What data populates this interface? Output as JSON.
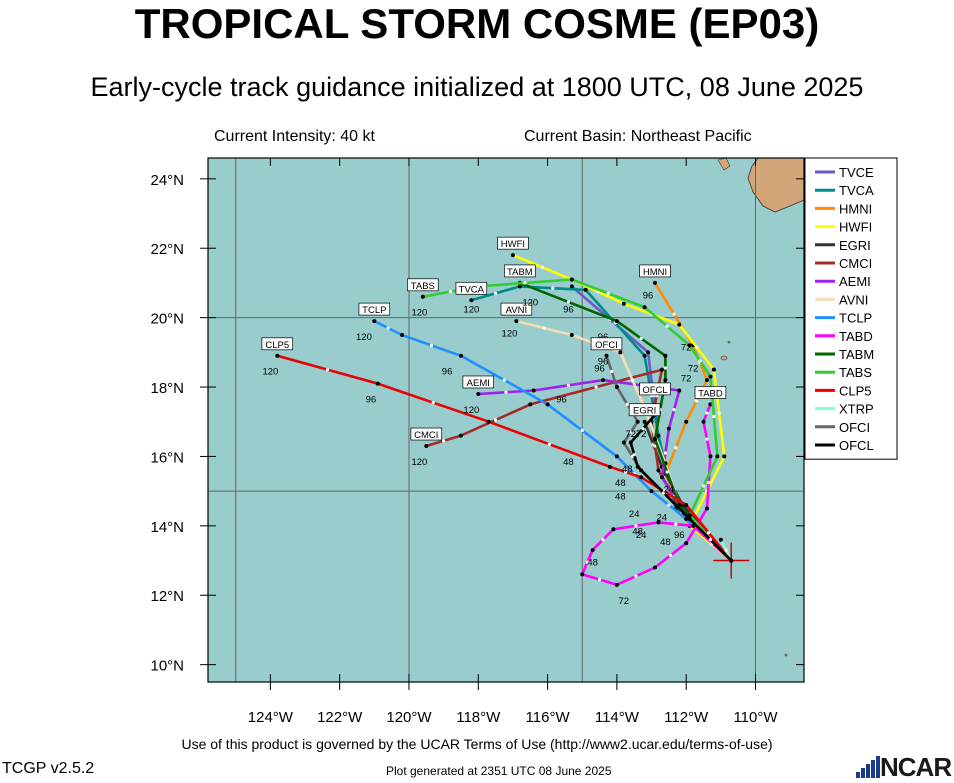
{
  "header": {
    "title": "TROPICAL STORM COSME (EP03)",
    "subtitle": "Early-cycle track guidance initialized at 1800 UTC, 08 June 2025",
    "intensity": "Current Intensity: 40 kt",
    "basin": "Current Basin: Northeast Pacific"
  },
  "map": {
    "lon_range": [
      -125.8,
      -108.6
    ],
    "lat_range": [
      9.5,
      24.6
    ],
    "lat_ticks": [
      {
        "lat": 24,
        "label": "24°N"
      },
      {
        "lat": 22,
        "label": "22°N"
      },
      {
        "lat": 20,
        "label": "20°N"
      },
      {
        "lat": 18,
        "label": "18°N"
      },
      {
        "lat": 16,
        "label": "16°N"
      },
      {
        "lat": 14,
        "label": "14°N"
      },
      {
        "lat": 12,
        "label": "12°N"
      },
      {
        "lat": 10,
        "label": "10°N"
      }
    ],
    "lon_ticks": [
      {
        "lon": -124,
        "label": "124°W"
      },
      {
        "lon": -122,
        "label": "122°W"
      },
      {
        "lon": -120,
        "label": "120°W"
      },
      {
        "lon": -118,
        "label": "118°W"
      },
      {
        "lon": -116,
        "label": "116°W"
      },
      {
        "lon": -114,
        "label": "114°W"
      },
      {
        "lon": -112,
        "label": "112°W"
      },
      {
        "lon": -110,
        "label": "110°W"
      }
    ],
    "grid_lons": [
      -125,
      -120,
      -115,
      -110
    ],
    "grid_lats": [
      15,
      20
    ],
    "ocean_color": "#99cccc",
    "land_color": "#d2a679",
    "current_position": {
      "lon": -110.7,
      "lat": 13.0
    }
  },
  "chart_data": {
    "type": "scatter",
    "series": [
      {
        "name": "TVCE",
        "color": "#6a5acd",
        "points": [
          [
            -110.7,
            13.0
          ],
          [
            -112.3,
            14.5
          ],
          [
            -112.8,
            16.5
          ],
          [
            -113.1,
            19.0
          ],
          [
            -115.3,
            20.9
          ]
        ],
        "hour_labels": []
      },
      {
        "name": "TVCA",
        "color": "#008b8b",
        "points": [
          [
            -110.7,
            13.0
          ],
          [
            -112.3,
            14.5
          ],
          [
            -112.8,
            16.6
          ],
          [
            -113.2,
            18.9
          ],
          [
            -114.9,
            20.8
          ],
          [
            -116.8,
            20.9
          ],
          [
            -118.2,
            20.5
          ]
        ],
        "hour_labels": [
          [
            -118.2,
            20.5,
            "120"
          ]
        ],
        "tag": "TVCA",
        "tag_at": [
          -118.2,
          20.5
        ]
      },
      {
        "name": "HMNI",
        "color": "#ff8c00",
        "points": [
          [
            -110.7,
            13.0
          ],
          [
            -111.9,
            14.0
          ],
          [
            -112.6,
            15.5
          ],
          [
            -112.0,
            17.0
          ],
          [
            -111.4,
            18.2
          ],
          [
            -111.8,
            19.2
          ],
          [
            -112.9,
            21.0
          ]
        ],
        "hour_labels": [
          [
            -111.8,
            18.8,
            "72"
          ],
          [
            -113.1,
            20.9,
            "96"
          ]
        ],
        "tag": "HMNI",
        "tag_at": [
          -112.9,
          21.0
        ]
      },
      {
        "name": "HWFI",
        "color": "#ffff00",
        "points": [
          [
            -110.7,
            13.0
          ],
          [
            -111.9,
            14.0
          ],
          [
            -110.9,
            16.0
          ],
          [
            -111.2,
            18.5
          ],
          [
            -112.2,
            19.8
          ],
          [
            -113.8,
            20.4
          ],
          [
            -115.3,
            21.1
          ],
          [
            -117.0,
            21.8
          ]
        ],
        "hour_labels": [
          [
            -112.0,
            19.4,
            "72"
          ]
        ],
        "tag": "HWFI",
        "tag_at": [
          -117.0,
          21.8
        ]
      },
      {
        "name": "EGRI",
        "color": "#333333",
        "points": [
          [
            -110.7,
            13.0
          ],
          [
            -112.1,
            14.6
          ],
          [
            -112.7,
            15.7
          ],
          [
            -113.2,
            17.0
          ]
        ],
        "hour_labels": [
          [
            -113.3,
            16.9,
            "72"
          ]
        ],
        "tag": "EGRI",
        "tag_at": [
          -113.2,
          17.0
        ]
      },
      {
        "name": "CMCI",
        "color": "#a52a2a",
        "points": [
          [
            -110.7,
            13.0
          ],
          [
            -112.0,
            14.2
          ],
          [
            -112.8,
            15.6
          ],
          [
            -113.0,
            17.0
          ],
          [
            -112.7,
            18.5
          ],
          [
            -116.5,
            17.5
          ],
          [
            -118.5,
            16.6
          ],
          [
            -119.5,
            16.3
          ]
        ],
        "hour_labels": [
          [
            -119.7,
            16.1,
            "120"
          ]
        ],
        "tag": "CMCI",
        "tag_at": [
          -119.5,
          16.3
        ]
      },
      {
        "name": "AEMI",
        "color": "#a020f0",
        "points": [
          [
            -110.7,
            13.0
          ],
          [
            -112.0,
            14.3
          ],
          [
            -112.7,
            15.4
          ],
          [
            -112.5,
            16.8
          ],
          [
            -112.2,
            17.9
          ],
          [
            -114.4,
            18.2
          ],
          [
            -116.4,
            17.9
          ],
          [
            -118.0,
            17.8
          ]
        ],
        "hour_labels": [
          [
            -118.2,
            17.6,
            "120"
          ],
          [
            -115.6,
            17.9,
            "96"
          ]
        ],
        "tag": "AEMI",
        "tag_at": [
          -118.0,
          17.8
        ]
      },
      {
        "name": "AVNI",
        "color": "#f5deb3",
        "points": [
          [
            -110.7,
            13.0
          ],
          [
            -112.1,
            14.3
          ],
          [
            -112.6,
            15.8
          ],
          [
            -113.2,
            17.4
          ],
          [
            -113.9,
            19.0
          ],
          [
            -115.3,
            19.5
          ],
          [
            -116.9,
            19.9
          ]
        ],
        "hour_labels": [
          [
            -117.1,
            19.8,
            "120"
          ],
          [
            -114.4,
            19.0,
            "96"
          ]
        ],
        "tag": "AVNI",
        "tag_at": [
          -116.9,
          19.9
        ]
      },
      {
        "name": "TCLP",
        "color": "#1e90ff",
        "points": [
          [
            -110.7,
            13.0
          ],
          [
            -112.0,
            14.2
          ],
          [
            -113.0,
            15.0
          ],
          [
            -114.0,
            16.0
          ],
          [
            -116.0,
            17.5
          ],
          [
            -118.5,
            18.9
          ],
          [
            -120.2,
            19.5
          ],
          [
            -121.0,
            19.9
          ]
        ],
        "hour_labels": [
          [
            -121.3,
            19.7,
            "120"
          ],
          [
            -118.9,
            18.7,
            "96"
          ]
        ],
        "tag": "TCLP",
        "tag_at": [
          -121.0,
          19.9
        ]
      },
      {
        "name": "TABD",
        "color": "#ff00ff",
        "points": [
          [
            -110.7,
            13.0
          ],
          [
            -111.8,
            14.0
          ],
          [
            -112.8,
            14.1
          ],
          [
            -114.1,
            13.9
          ],
          [
            -114.7,
            13.3
          ],
          [
            -115.0,
            12.6
          ],
          [
            -114.0,
            12.3
          ],
          [
            -112.9,
            12.8
          ],
          [
            -112.0,
            13.5
          ],
          [
            -111.4,
            14.5
          ],
          [
            -111.3,
            16.0
          ],
          [
            -111.5,
            17.0
          ],
          [
            -111.3,
            17.5
          ]
        ],
        "hour_labels": [
          [
            -114.7,
            13.2,
            "48"
          ],
          [
            -113.8,
            12.1,
            "72"
          ]
        ],
        "tag": "TABD",
        "tag_at": [
          -111.3,
          17.5
        ]
      },
      {
        "name": "TABM",
        "color": "#006400",
        "points": [
          [
            -110.7,
            13.0
          ],
          [
            -112.2,
            14.6
          ],
          [
            -112.9,
            16.5
          ],
          [
            -112.6,
            18.2
          ],
          [
            -112.6,
            18.9
          ],
          [
            -114.0,
            19.9
          ],
          [
            -116.8,
            21.0
          ]
        ],
        "hour_labels": [
          [
            -112.0,
            18.5,
            "72"
          ],
          [
            -116.5,
            20.7,
            "120"
          ],
          [
            -114.4,
            19.7,
            "96"
          ]
        ],
        "tag": "TABM",
        "tag_at": [
          -116.8,
          21.0
        ]
      },
      {
        "name": "TABS",
        "color": "#32cd32",
        "points": [
          [
            -110.7,
            13.0
          ],
          [
            -111.9,
            14.3
          ],
          [
            -111.1,
            16.0
          ],
          [
            -111.3,
            18.3
          ],
          [
            -111.9,
            19.2
          ],
          [
            -113.2,
            20.3
          ],
          [
            -115.3,
            21.1
          ],
          [
            -118.0,
            20.9
          ],
          [
            -119.6,
            20.6
          ]
        ],
        "hour_labels": [
          [
            -119.7,
            20.4,
            "120"
          ],
          [
            -115.4,
            20.5,
            "96"
          ]
        ],
        "tag": "TABS",
        "tag_at": [
          -119.6,
          20.6
        ]
      },
      {
        "name": "CLP5",
        "color": "#ee0000",
        "points": [
          [
            -110.7,
            13.0
          ],
          [
            -112.0,
            14.6
          ],
          [
            -113.3,
            15.4
          ],
          [
            -114.2,
            15.7
          ],
          [
            -117.7,
            17.0
          ],
          [
            -120.9,
            18.1
          ],
          [
            -123.8,
            18.9
          ]
        ],
        "hour_labels": [
          [
            -124.0,
            18.7,
            "120"
          ],
          [
            -121.1,
            17.9,
            "96"
          ],
          [
            -115.4,
            16.1,
            "48"
          ]
        ],
        "tag": "CLP5",
        "tag_at": [
          -123.8,
          18.9
        ]
      },
      {
        "name": "XTRP",
        "color": "#7fffd4",
        "points": [
          [
            -110.7,
            13.0
          ],
          [
            -111.0,
            13.6
          ]
        ],
        "hour_labels": []
      },
      {
        "name": "OFCI",
        "color": "#666666",
        "points": [
          [
            -110.7,
            13.0
          ],
          [
            -111.9,
            14.2
          ],
          [
            -113.3,
            15.6
          ],
          [
            -113.8,
            16.4
          ],
          [
            -113.4,
            17.0
          ],
          [
            -114.0,
            18.0
          ],
          [
            -114.3,
            18.9
          ]
        ],
        "hour_labels": [
          [
            -114.5,
            18.8,
            "96"
          ],
          [
            -113.6,
            16.9,
            "72"
          ]
        ],
        "tag": "OFCI",
        "tag_at": [
          -114.3,
          18.9
        ]
      },
      {
        "name": "OFCL",
        "color": "#000000",
        "points": [
          [
            -110.7,
            13.0
          ],
          [
            -111.9,
            14.2
          ],
          [
            -113.4,
            15.7
          ],
          [
            -113.6,
            16.4
          ],
          [
            -112.9,
            17.2
          ]
        ],
        "hour_labels": [
          [
            -112.9,
            17.6,
            "OFCL"
          ],
          [
            -113.7,
            15.9,
            "48"
          ],
          [
            -113.9,
            15.5,
            "48"
          ],
          [
            -113.9,
            15.1,
            "48"
          ],
          [
            -113.5,
            14.6,
            "24"
          ],
          [
            -113.4,
            14.1,
            "48"
          ],
          [
            -113.3,
            14.0,
            "24"
          ],
          [
            -112.7,
            14.5,
            "24"
          ],
          [
            -112.2,
            14.0,
            "96"
          ],
          [
            -112.6,
            13.8,
            "48"
          ],
          [
            -112.5,
            15.3,
            "24"
          ]
        ],
        "tag": "OFCL",
        "tag_at": [
          -112.9,
          17.6
        ]
      }
    ]
  },
  "footer": {
    "terms": "Use of this product is governed by the UCAR Terms of Use (http://www2.ucar.edu/terms-of-use)",
    "version": "TCGP v2.5.2",
    "generated": "Plot generated at 2351 UTC   08 June 2025",
    "ncar": "NCAR"
  }
}
